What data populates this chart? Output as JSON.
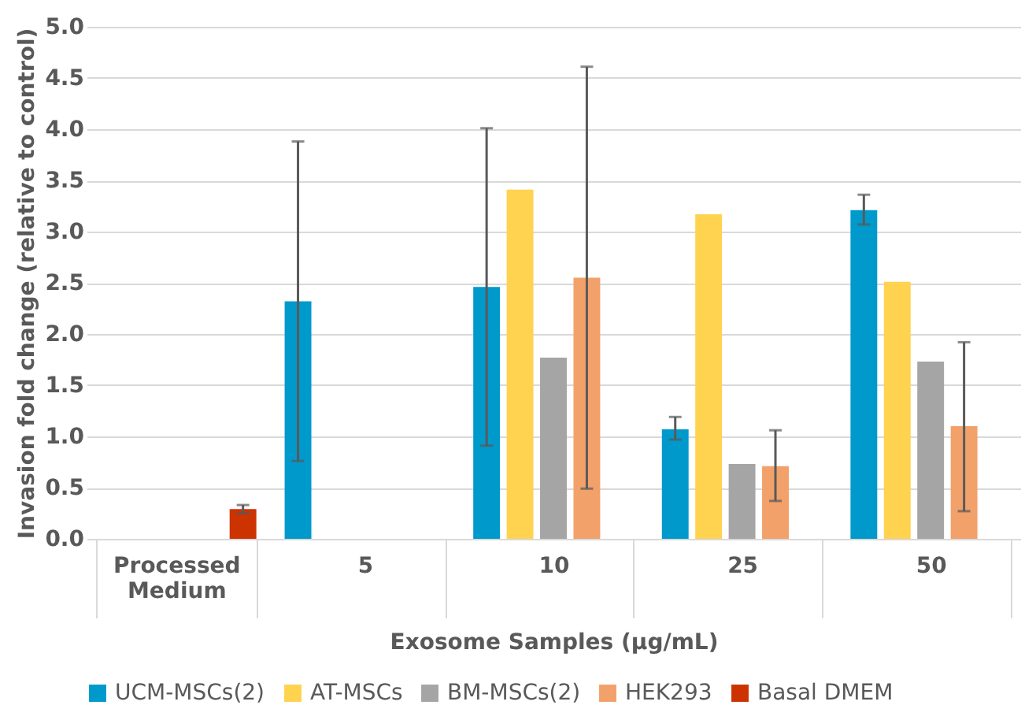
{
  "chart_data": {
    "type": "bar",
    "ylabel": "Invasion fold change (relative to control)",
    "xlabel": "Exosome Samples (µg/mL)",
    "categories": [
      "Processed Medium",
      "5",
      "10",
      "25",
      "50"
    ],
    "series": [
      {
        "name": "UCM-MSCs(2)",
        "color": "#0099cc",
        "values": [
          null,
          2.32,
          2.46,
          1.07,
          3.21
        ],
        "errors": [
          null,
          [
            0.76,
            3.88
          ],
          [
            0.91,
            4.01
          ],
          [
            0.97,
            1.19
          ],
          [
            3.07,
            3.36
          ]
        ]
      },
      {
        "name": "AT-MSCs",
        "color": "#ffd24f",
        "values": [
          null,
          null,
          3.41,
          3.17,
          2.51
        ]
      },
      {
        "name": "BM-MSCs(2)",
        "color": "#a5a5a5",
        "values": [
          null,
          null,
          1.77,
          0.73,
          1.73
        ]
      },
      {
        "name": "HEK293",
        "color": "#f2a16b",
        "values": [
          null,
          null,
          2.55,
          0.71,
          1.1
        ],
        "errors": [
          null,
          null,
          [
            0.49,
            4.61
          ],
          [
            0.37,
            1.06
          ],
          [
            0.27,
            1.92
          ]
        ]
      },
      {
        "name": "Basal DMEM",
        "color": "#cc3300",
        "values": [
          0.29,
          null,
          null,
          null,
          null
        ],
        "errors": [
          [
            0.25,
            0.33
          ],
          null,
          null,
          null,
          null
        ]
      }
    ],
    "ylim": [
      0,
      5
    ],
    "yticks": [
      {
        "value": 0,
        "label": "0.0"
      },
      0.5,
      {
        "value": 1,
        "label": "1.0"
      },
      1.5,
      {
        "value": 2,
        "label": "2.0"
      },
      2.5,
      {
        "value": 3,
        "label": "3.0"
      },
      3.5,
      {
        "value": 4,
        "label": "4.0"
      },
      4.5,
      {
        "value": 5,
        "label": "5.0"
      }
    ],
    "grid": "y",
    "legend": "bottom"
  }
}
